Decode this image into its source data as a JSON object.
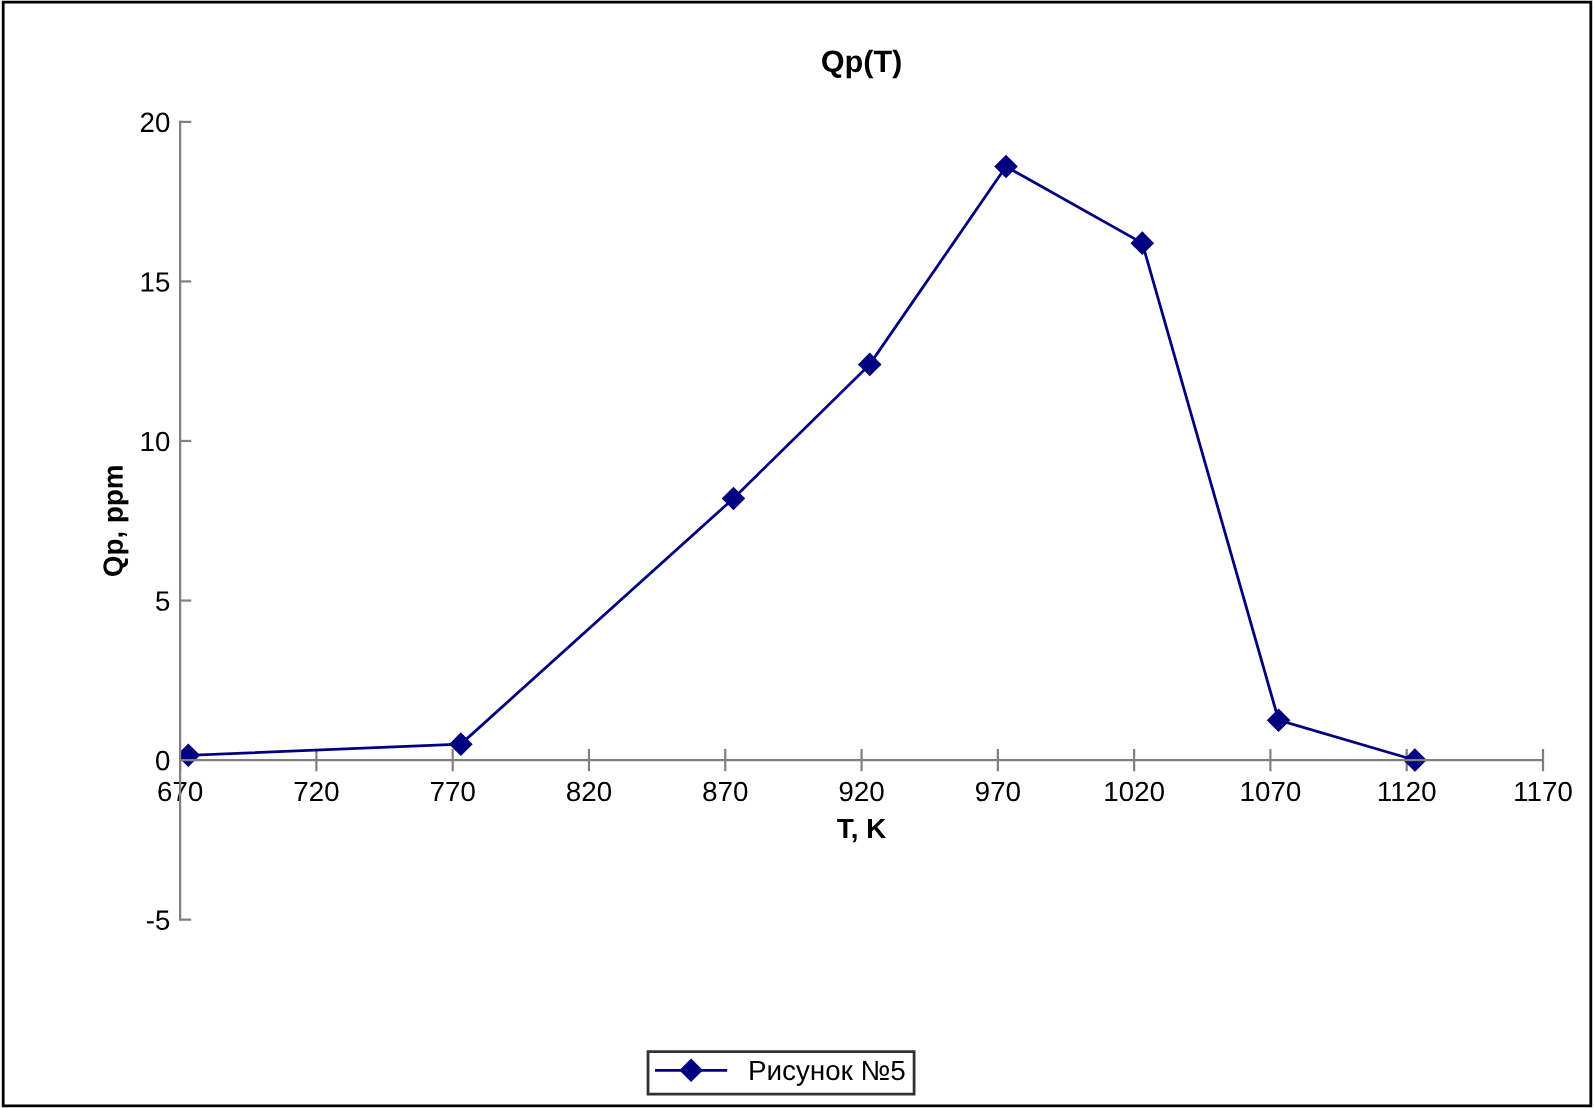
{
  "chart_data": {
    "type": "line",
    "title": "Qp(T)",
    "xlabel": "T, K",
    "ylabel": "Qp, ppm",
    "x": [
      673,
      773,
      873,
      923,
      973,
      1023,
      1073,
      1123
    ],
    "series": [
      {
        "name": "Рисунок №5",
        "color": "#000080",
        "values": [
          0.15,
          0.5,
          8.2,
          12.4,
          18.6,
          16.2,
          1.25,
          0
        ]
      }
    ],
    "xlim": [
      670,
      1170
    ],
    "xticks": [
      670,
      720,
      770,
      820,
      870,
      920,
      970,
      1020,
      1070,
      1120,
      1170
    ],
    "ylim": [
      -5,
      20
    ],
    "yticks": [
      -5,
      0,
      5,
      10,
      15,
      20
    ],
    "marker": "diamond",
    "line_style": "solid",
    "grid": false,
    "legend": "bottom"
  }
}
